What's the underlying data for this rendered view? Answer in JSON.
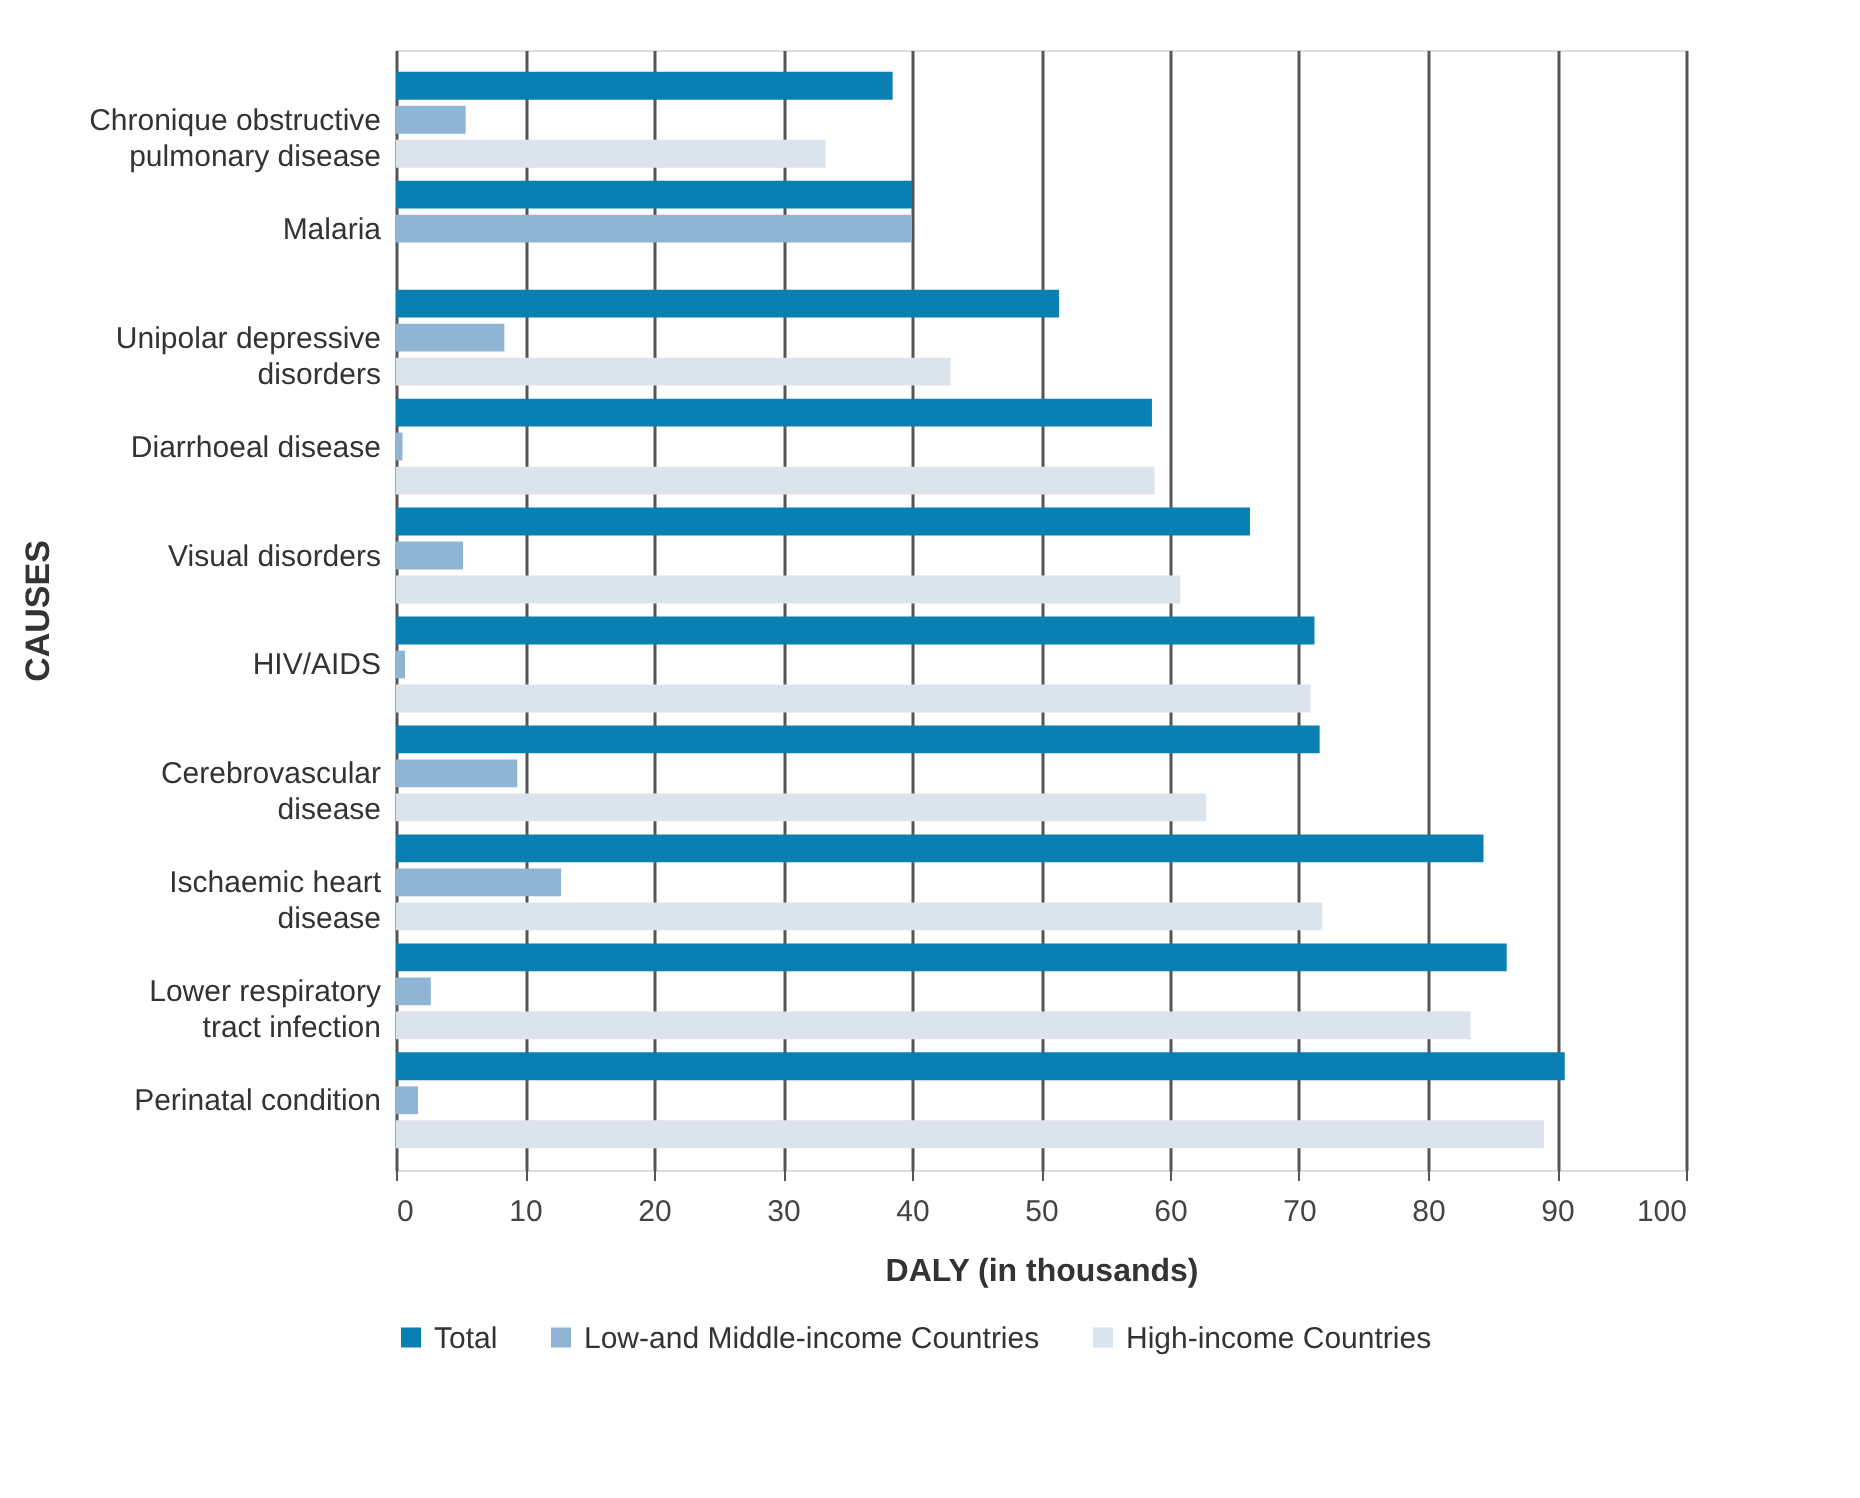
{
  "chart_data": {
    "type": "bar",
    "orientation": "horizontal",
    "xlabel": "DALY (in thousands)",
    "ylabel": "CAUSES",
    "categories": [
      "Chronique obstructive\npulmonary disease",
      "Malaria",
      "Unipolar depressive\ndisorders",
      "Diarrhoeal disease",
      "Visual disorders",
      "HIV/AIDS",
      "Cerebrovascular\ndisease",
      "Ischaemic heart\ndisease",
      "Lower respiratory\ntract infection",
      "Perinatal condition"
    ],
    "series": [
      {
        "name": "Total",
        "color": "#0a80b2",
        "values": [
          38.5,
          40,
          51.4,
          58.6,
          66.2,
          71.2,
          71.6,
          84.3,
          86.1,
          90.6
        ]
      },
      {
        "name": "Low-and Middle-income Countries",
        "color": "#8fb4d4",
        "values": [
          5.4,
          40,
          8.4,
          0.5,
          5.2,
          0.7,
          9.4,
          12.8,
          2.7,
          1.7
        ]
      },
      {
        "name": "High-income Countries",
        "color": "#dbe3ec",
        "values": [
          33.3,
          null,
          43,
          58.8,
          60.8,
          70.9,
          62.8,
          71.8,
          83.3,
          89
        ]
      }
    ],
    "xlim": [
      0,
      100
    ],
    "xticks": [
      0,
      10,
      20,
      30,
      40,
      50,
      60,
      70,
      80,
      90,
      100
    ],
    "grid": "x",
    "legend": "bottom"
  }
}
